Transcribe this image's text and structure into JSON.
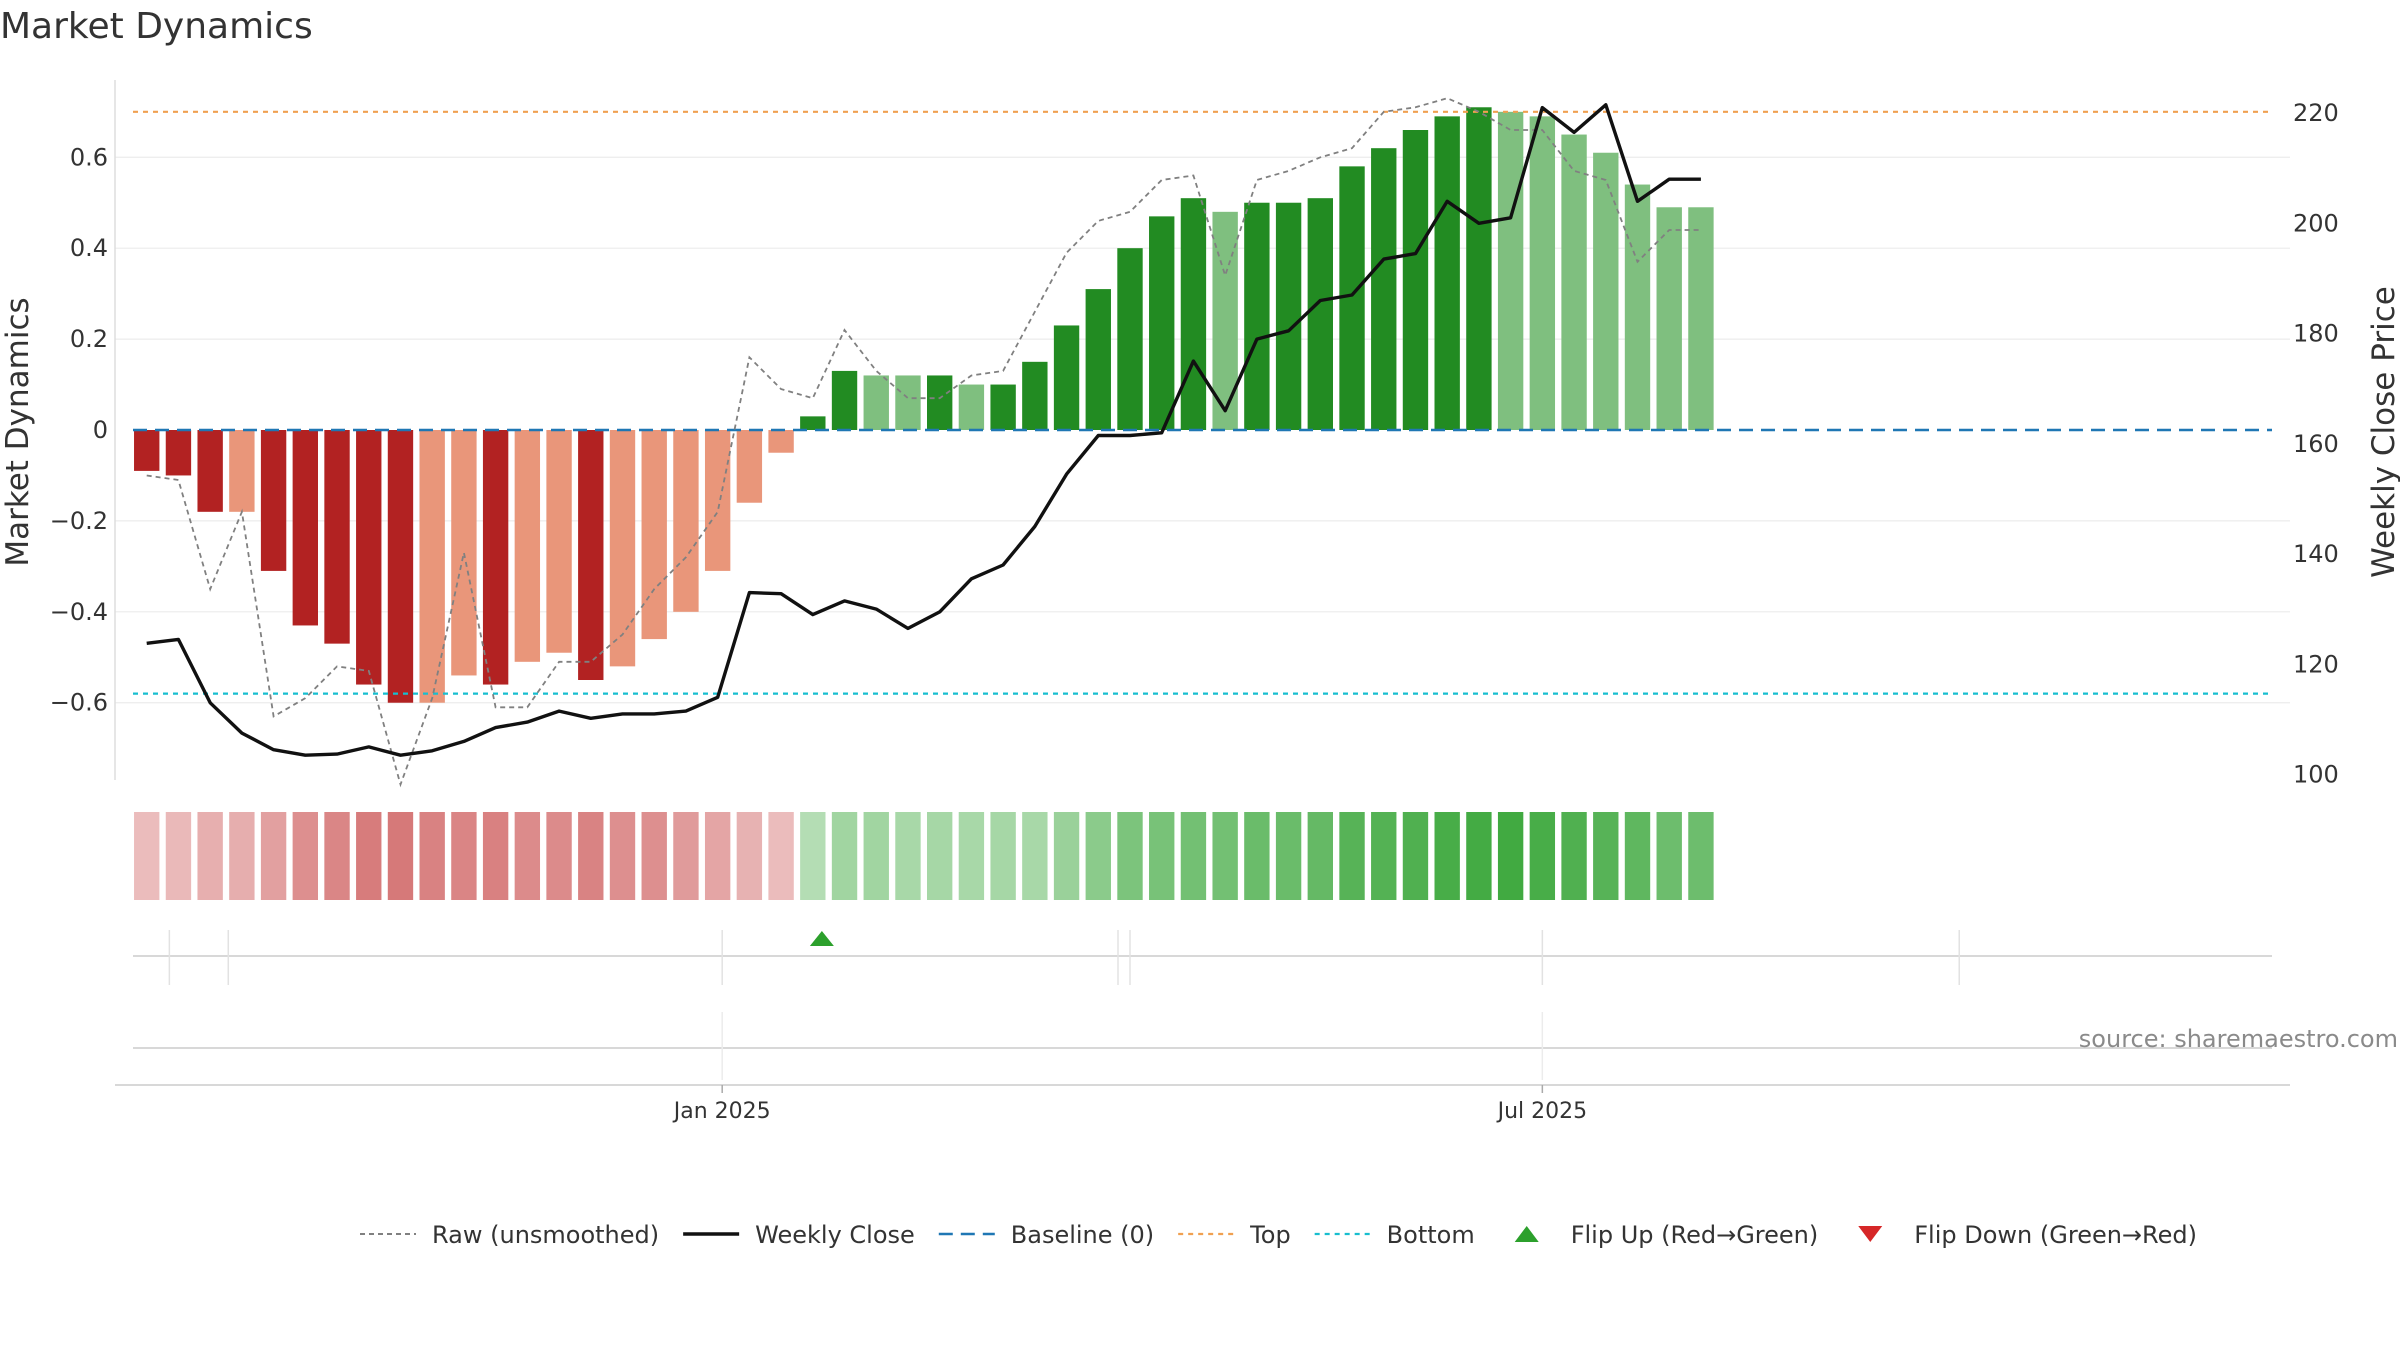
{
  "chart_data": {
    "type": "bar",
    "title": "Market Dynamics",
    "ylabel_left": "Market Dynamics",
    "ylabel_right": "Weekly Close Price",
    "y_left_ticks": [
      {
        "value": -0.6,
        "label": "−0.6"
      },
      {
        "value": -0.4,
        "label": "−0.4"
      },
      {
        "value": -0.2,
        "label": "−0.2"
      },
      {
        "value": 0,
        "label": "0"
      },
      {
        "value": 0.2,
        "label": "0.2"
      },
      {
        "value": 0.4,
        "label": "0.4"
      },
      {
        "value": 0.6,
        "label": "0.6"
      }
    ],
    "y_right_ticks": [
      {
        "value": 100,
        "label": "100"
      },
      {
        "value": 120,
        "label": "120"
      },
      {
        "value": 140,
        "label": "140"
      },
      {
        "value": 160,
        "label": "160"
      },
      {
        "value": 180,
        "label": "180"
      },
      {
        "value": 200,
        "label": "200"
      },
      {
        "value": 220,
        "label": "220"
      }
    ],
    "y_left_range": [
      -0.77,
      0.77
    ],
    "y_right_range": [
      99,
      226
    ],
    "x_ticks": [
      {
        "date": "2025-01-01",
        "label": "Jan 2025"
      },
      {
        "date": "2025-07-01",
        "label": "Jul 2025"
      }
    ],
    "x_range": [
      "2024-08-20",
      "2025-12-13"
    ],
    "dates": [
      "2024-08-27",
      "2024-09-03",
      "2024-09-10",
      "2024-09-17",
      "2024-09-24",
      "2024-10-01",
      "2024-10-08",
      "2024-10-15",
      "2024-10-22",
      "2024-10-29",
      "2024-11-05",
      "2024-11-12",
      "2024-11-19",
      "2024-11-26",
      "2024-12-03",
      "2024-12-10",
      "2024-12-17",
      "2024-12-24",
      "2024-12-31",
      "2025-01-07",
      "2025-01-14",
      "2025-01-21",
      "2025-01-28",
      "2025-02-04",
      "2025-02-11",
      "2025-02-18",
      "2025-02-25",
      "2025-03-04",
      "2025-03-11",
      "2025-03-18",
      "2025-03-25",
      "2025-04-01",
      "2025-04-08",
      "2025-04-15",
      "2025-04-22",
      "2025-04-29",
      "2025-05-06",
      "2025-05-13",
      "2025-05-20",
      "2025-05-27",
      "2025-06-03",
      "2025-06-10",
      "2025-06-17",
      "2025-06-24",
      "2025-07-01",
      "2025-07-08",
      "2025-07-15",
      "2025-07-22",
      "2025-07-29",
      "2025-08-05"
    ],
    "bar_width_days": 5.6,
    "series": [
      {
        "name": "Market Dynamics",
        "values": [
          -0.09,
          -0.1,
          -0.18,
          -0.18,
          -0.31,
          -0.43,
          -0.47,
          -0.56,
          -0.6,
          -0.6,
          -0.54,
          -0.56,
          -0.51,
          -0.49,
          -0.55,
          -0.52,
          -0.46,
          -0.4,
          -0.31,
          -0.16,
          -0.05,
          0.03,
          0.13,
          0.12,
          0.12,
          0.12,
          0.1,
          0.1,
          0.15,
          0.23,
          0.31,
          0.4,
          0.47,
          0.51,
          0.48,
          0.5,
          0.5,
          0.51,
          0.58,
          0.62,
          0.66,
          0.69,
          0.71,
          0.7,
          0.69,
          0.65,
          0.61,
          0.54,
          0.49,
          0.49
        ],
        "shade": [
          "dark",
          "dark",
          "dark",
          "light",
          "dark",
          "dark",
          "dark",
          "dark",
          "dark",
          "light",
          "light",
          "dark",
          "light",
          "light",
          "dark",
          "light",
          "light",
          "light",
          "light",
          "light",
          "light",
          "dark",
          "dark",
          "light",
          "light",
          "dark",
          "light",
          "dark",
          "dark",
          "dark",
          "dark",
          "dark",
          "dark",
          "dark",
          "light",
          "dark",
          "dark",
          "dark",
          "dark",
          "dark",
          "dark",
          "dark",
          "dark",
          "light",
          "light",
          "light",
          "light",
          "light",
          "light",
          "light"
        ]
      },
      {
        "name": "Raw (unsmoothed)",
        "values": [
          -0.1,
          -0.11,
          -0.35,
          -0.18,
          -0.63,
          -0.59,
          -0.52,
          -0.53,
          -0.78,
          -0.59,
          -0.27,
          -0.61,
          -0.61,
          -0.51,
          -0.51,
          -0.45,
          -0.35,
          -0.28,
          -0.18,
          0.16,
          0.09,
          0.07,
          0.22,
          0.13,
          0.07,
          0.07,
          0.12,
          0.13,
          0.26,
          0.39,
          0.46,
          0.48,
          0.55,
          0.56,
          0.34,
          0.55,
          0.57,
          0.6,
          0.62,
          0.7,
          0.71,
          0.73,
          0.7,
          0.66,
          0.66,
          0.57,
          0.55,
          0.37,
          0.44,
          0.44
        ]
      },
      {
        "name": "Weekly Close",
        "values": [
          123.8,
          124.5,
          113,
          107.5,
          104.5,
          103.5,
          103.7,
          105,
          103.5,
          104.3,
          106,
          108.5,
          109.5,
          111.5,
          110.2,
          111,
          111,
          111.5,
          114,
          133,
          132.8,
          129,
          131.5,
          130,
          126.5,
          129.5,
          135.5,
          138,
          145,
          154.5,
          161.5,
          161.5,
          162,
          175,
          166,
          179,
          180.5,
          186,
          187,
          193.5,
          194.5,
          204,
          200,
          201,
          221,
          216.5,
          221.5,
          204,
          208,
          208
        ]
      }
    ],
    "strength": [
      0.2,
      0.22,
      0.3,
      0.31,
      0.42,
      0.55,
      0.62,
      0.7,
      0.72,
      0.65,
      0.63,
      0.66,
      0.58,
      0.58,
      0.64,
      0.55,
      0.55,
      0.46,
      0.38,
      0.28,
      0.2,
      0.22,
      0.35,
      0.35,
      0.3,
      0.32,
      0.3,
      0.32,
      0.3,
      0.4,
      0.5,
      0.6,
      0.63,
      0.66,
      0.66,
      0.72,
      0.72,
      0.76,
      0.85,
      0.87,
      0.9,
      0.95,
      0.98,
      1.0,
      0.95,
      0.9,
      0.85,
      0.8,
      0.7,
      0.7
    ],
    "flip_up_dates": [
      "2025-01-23"
    ],
    "flip_down_dates": [],
    "baseline": 0,
    "top": 0.7,
    "bottom": -0.58,
    "grid": true,
    "legend_position": "bottom",
    "legend": [
      {
        "key": "raw",
        "label": "Raw (unsmoothed)"
      },
      {
        "key": "close",
        "label": "Weekly Close"
      },
      {
        "key": "baseline",
        "label": "Baseline (0)"
      },
      {
        "key": "top",
        "label": "Top"
      },
      {
        "key": "bottom",
        "label": "Bottom"
      },
      {
        "key": "flipup",
        "label": "Flip Up (Red→Green)"
      },
      {
        "key": "flipdown",
        "label": "Flip Down (Green→Red)"
      }
    ],
    "source": "source: sharemaestro.com"
  },
  "colors": {
    "green_dark": "#228b22",
    "green_light": "#7fbf7f",
    "red_dark": "#b22222",
    "red_light": "#e9967a",
    "close_line": "#111111",
    "raw_line": "#808080",
    "baseline": "#1f77b4",
    "top": "#f0a050",
    "bottom": "#17becf",
    "flip_up": "#2ca02c",
    "flip_down": "#d62728"
  }
}
